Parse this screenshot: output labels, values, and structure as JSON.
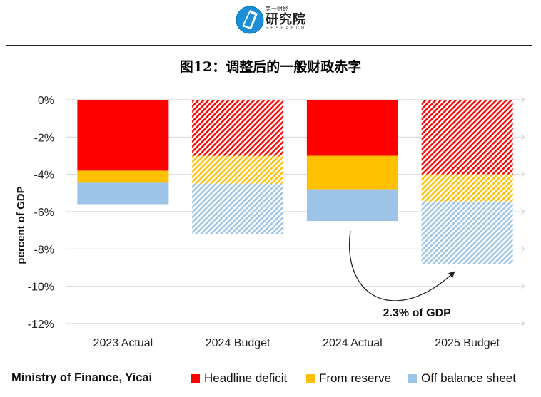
{
  "header": {
    "logo_top": "第一财经",
    "logo_main": "研究院",
    "logo_sub": "RESEARCH",
    "title": "图12：调整后的一般财政赤字"
  },
  "colors": {
    "headline": "#ff0000",
    "reserve": "#ffc000",
    "offbalance": "#9dc3e6",
    "grid": "#d9d9d9",
    "axis_text": "#222222"
  },
  "chart_data": {
    "type": "bar",
    "stacked": true,
    "title": "图12：调整后的一般财政赤字",
    "ylabel": "percent of GDP",
    "ylim": [
      -12,
      0
    ],
    "yticks": [
      0,
      -2,
      -4,
      -6,
      -8,
      -10,
      -12
    ],
    "ytick_labels": [
      "0%",
      "-2%",
      "-4%",
      "-6%",
      "-8%",
      "-10%",
      "-12%"
    ],
    "grid": true,
    "categories": [
      "2023 Actual",
      "2024 Budget",
      "2024 Actual",
      "2025 Budget"
    ],
    "hatched": [
      false,
      true,
      false,
      true
    ],
    "series": [
      {
        "name": "Headline deficit",
        "values": [
          -3.8,
          -3.0,
          -3.0,
          -4.0
        ]
      },
      {
        "name": "From reserve",
        "values": [
          -0.65,
          -1.5,
          -1.8,
          -1.45
        ]
      },
      {
        "name": "Off balance sheet",
        "values": [
          -1.15,
          -2.7,
          -1.7,
          -3.35
        ]
      }
    ],
    "annotation": {
      "text": "2.3% of GDP",
      "from_category": "2024 Actual",
      "to_category": "2025 Budget"
    },
    "legend_position": "bottom"
  },
  "footer": {
    "source": "Ministry of Finance, Yicai"
  }
}
